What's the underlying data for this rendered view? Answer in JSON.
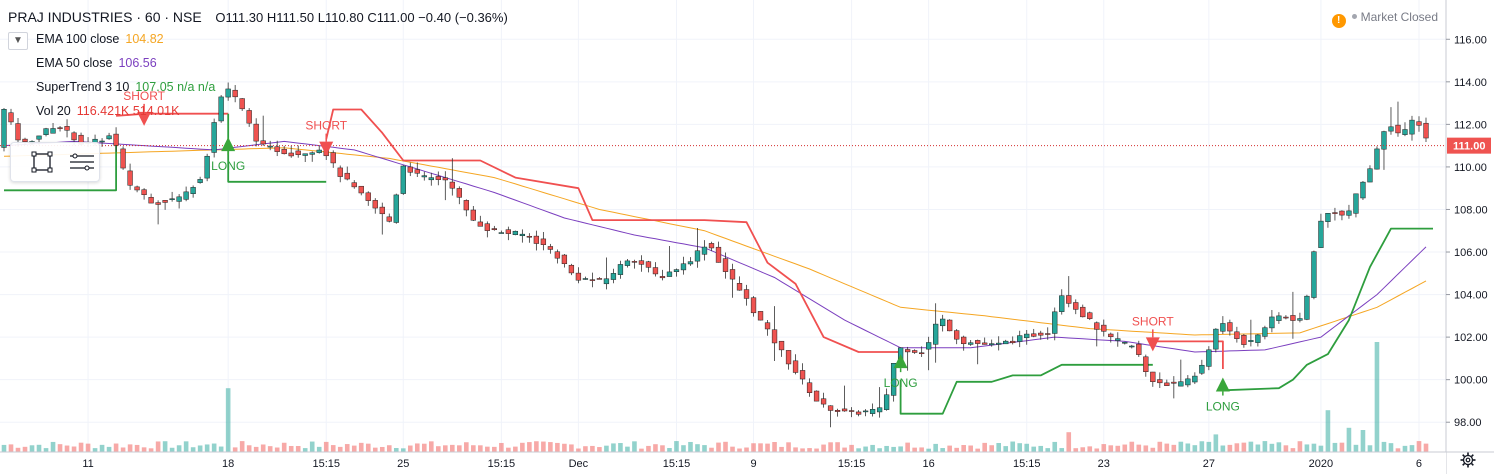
{
  "header": {
    "symbol": "PRAJ INDUSTRIES · 60 · NSE",
    "ohlc": "O111.30 H111.50 L110.80 C111.00 −0.40 (−0.36%)"
  },
  "indicators": [
    {
      "label": "EMA 100 close",
      "value": "104.82",
      "color": "#f5a623"
    },
    {
      "label": "EMA 50 close",
      "value": "106.56",
      "color": "#7b3fbf"
    },
    {
      "label": "SuperTrend 3 10",
      "value": "107.05  n/a  n/a",
      "color": "#2e9e3e"
    },
    {
      "label": "Vol 20",
      "value": "116.421K  514.01K",
      "color": "#e53935"
    }
  ],
  "status": {
    "text": "Market Closed"
  },
  "icons": [
    "chevron-down-icon",
    "rectangle-tool-icon",
    "lines-tool-icon",
    "warning-icon",
    "gear-icon"
  ],
  "colors": {
    "up": "#26a69a",
    "down": "#ef5350",
    "st_up": "#2e9e3e",
    "st_down": "#f05050",
    "ema50": "#7b3fbf",
    "ema100": "#f5a623"
  },
  "chart_data": {
    "type": "line",
    "y_range": [
      96.6,
      117
    ],
    "y_ticks": [
      "116.00",
      "114.00",
      "112.00",
      "110.00",
      "108.00",
      "106.00",
      "104.00",
      "102.00",
      "100.00",
      "98.00"
    ],
    "last_price_label": "111.00",
    "last_price": 111.0,
    "x_ticks": [
      "11",
      "18",
      "15:15",
      "25",
      "15:15",
      "Dec",
      "15:15",
      "9",
      "15:15",
      "16",
      "15:15",
      "23",
      "27",
      "2020",
      "6"
    ],
    "x_tick_bars": [
      12,
      32,
      46,
      57,
      71,
      82,
      96,
      107,
      121,
      132,
      146,
      157,
      172,
      188,
      202
    ],
    "bar_count": 204,
    "price_anchors": [
      [
        0,
        113.0
      ],
      [
        3,
        111.0
      ],
      [
        8,
        112.0
      ],
      [
        12,
        111.0
      ],
      [
        16,
        111.5
      ],
      [
        18,
        109.3
      ],
      [
        22,
        108.3
      ],
      [
        26,
        108.6
      ],
      [
        29,
        109.7
      ],
      [
        30,
        111.5
      ],
      [
        32,
        113.9
      ],
      [
        34,
        113.0
      ],
      [
        37,
        111.0
      ],
      [
        42,
        110.6
      ],
      [
        46,
        110.9
      ],
      [
        48,
        109.8
      ],
      [
        52,
        108.5
      ],
      [
        56,
        107.3
      ],
      [
        57,
        110.2
      ],
      [
        60,
        109.5
      ],
      [
        64,
        109.4
      ],
      [
        67,
        107.6
      ],
      [
        70,
        107.0
      ],
      [
        75,
        106.8
      ],
      [
        79,
        106.0
      ],
      [
        82,
        104.8
      ],
      [
        86,
        104.6
      ],
      [
        90,
        105.8
      ],
      [
        94,
        104.8
      ],
      [
        98,
        105.5
      ],
      [
        101,
        106.5
      ],
      [
        103,
        105.3
      ],
      [
        106,
        104.0
      ],
      [
        109,
        102.5
      ],
      [
        113,
        100.6
      ],
      [
        117,
        98.8
      ],
      [
        121,
        98.4
      ],
      [
        126,
        98.6
      ],
      [
        128,
        101.5
      ],
      [
        132,
        101.3
      ],
      [
        134,
        103.0
      ],
      [
        137,
        101.8
      ],
      [
        142,
        101.6
      ],
      [
        146,
        102.0
      ],
      [
        150,
        102.3
      ],
      [
        151,
        104.2
      ],
      [
        154,
        103.2
      ],
      [
        158,
        102.0
      ],
      [
        162,
        101.5
      ],
      [
        164,
        100.0
      ],
      [
        168,
        99.7
      ],
      [
        171,
        100.3
      ],
      [
        174,
        102.7
      ],
      [
        178,
        101.6
      ],
      [
        182,
        103.0
      ],
      [
        186,
        102.8
      ],
      [
        188,
        107.2
      ],
      [
        190,
        108.0
      ],
      [
        192,
        107.6
      ],
      [
        196,
        110.3
      ],
      [
        198,
        112.2
      ],
      [
        200,
        111.4
      ],
      [
        202,
        112.4
      ],
      [
        204,
        111.0
      ]
    ],
    "ema50_anchors": [
      [
        0,
        111.0
      ],
      [
        10,
        111.2
      ],
      [
        20,
        111.0
      ],
      [
        30,
        110.8
      ],
      [
        40,
        111.2
      ],
      [
        50,
        110.8
      ],
      [
        60,
        109.8
      ],
      [
        70,
        108.8
      ],
      [
        80,
        107.6
      ],
      [
        90,
        106.8
      ],
      [
        100,
        106.2
      ],
      [
        110,
        104.8
      ],
      [
        120,
        102.8
      ],
      [
        128,
        101.5
      ],
      [
        138,
        101.5
      ],
      [
        150,
        102.0
      ],
      [
        160,
        101.8
      ],
      [
        170,
        101.3
      ],
      [
        180,
        101.4
      ],
      [
        188,
        102.0
      ],
      [
        196,
        104.0
      ],
      [
        204,
        106.56
      ]
    ],
    "ema100_anchors": [
      [
        0,
        110.5
      ],
      [
        20,
        110.7
      ],
      [
        40,
        110.9
      ],
      [
        55,
        110.4
      ],
      [
        70,
        109.5
      ],
      [
        85,
        108.0
      ],
      [
        100,
        107.0
      ],
      [
        115,
        105.2
      ],
      [
        128,
        103.4
      ],
      [
        140,
        103.0
      ],
      [
        155,
        102.4
      ],
      [
        170,
        102.1
      ],
      [
        185,
        102.2
      ],
      [
        196,
        103.4
      ],
      [
        204,
        104.82
      ]
    ],
    "supertrend_segments": [
      {
        "trend": "up",
        "points": [
          [
            0,
            108.9
          ],
          [
            16,
            108.9
          ],
          [
            16,
            111.2
          ]
        ]
      },
      {
        "trend": "down",
        "points": [
          [
            16,
            112.4
          ],
          [
            20,
            112.5
          ],
          [
            20,
            112.5
          ],
          [
            32,
            112.5
          ]
        ]
      },
      {
        "trend": "up",
        "points": [
          [
            32,
            112.5
          ],
          [
            32,
            109.3
          ],
          [
            46,
            109.3
          ]
        ]
      },
      {
        "trend": "down",
        "points": [
          [
            46,
            111.3
          ],
          [
            47,
            112.7
          ],
          [
            51,
            112.7
          ],
          [
            54,
            111.6
          ],
          [
            57,
            110.3
          ],
          [
            68,
            110.3
          ],
          [
            73,
            109.5
          ],
          [
            82,
            109.0
          ],
          [
            84,
            107.5
          ],
          [
            100,
            107.5
          ],
          [
            106,
            107.4
          ],
          [
            109,
            105.5
          ],
          [
            113,
            104.5
          ],
          [
            117,
            102.0
          ],
          [
            122,
            101.3
          ],
          [
            128,
            101.3
          ]
        ]
      },
      {
        "trend": "up",
        "points": [
          [
            128,
            100.0
          ],
          [
            128,
            98.4
          ],
          [
            134,
            98.4
          ],
          [
            136,
            99.9
          ],
          [
            141,
            99.9
          ],
          [
            144,
            100.2
          ],
          [
            148,
            100.2
          ],
          [
            151,
            100.7
          ],
          [
            160,
            100.7
          ],
          [
            164,
            100.7
          ]
        ]
      },
      {
        "trend": "down",
        "points": [
          [
            164,
            101.8
          ],
          [
            174,
            101.8
          ],
          [
            174,
            100.5
          ]
        ]
      },
      {
        "trend": "up",
        "points": [
          [
            174,
            99.5
          ],
          [
            182,
            99.6
          ],
          [
            184,
            100.0
          ],
          [
            186,
            100.7
          ],
          [
            189,
            101.2
          ],
          [
            192,
            102.8
          ],
          [
            195,
            105.3
          ],
          [
            197,
            106.5
          ],
          [
            198,
            107.1
          ],
          [
            204,
            107.1
          ]
        ]
      }
    ],
    "signals": [
      {
        "type": "SHORT",
        "bar": 20,
        "price": 112.4
      },
      {
        "type": "LONG",
        "bar": 32,
        "price": 111.4
      },
      {
        "type": "SHORT",
        "bar": 46,
        "price": 111.0
      },
      {
        "type": "LONG",
        "bar": 128,
        "price": 101.2
      },
      {
        "type": "SHORT",
        "bar": 164,
        "price": 101.8
      },
      {
        "type": "LONG",
        "bar": 174,
        "price": 100.1
      }
    ],
    "volume_spikes": [
      [
        32,
        0.58
      ],
      [
        152,
        0.18
      ],
      [
        173,
        0.16
      ],
      [
        189,
        0.38
      ],
      [
        196,
        1.0
      ],
      [
        192,
        0.22
      ],
      [
        194,
        0.2
      ]
    ]
  }
}
